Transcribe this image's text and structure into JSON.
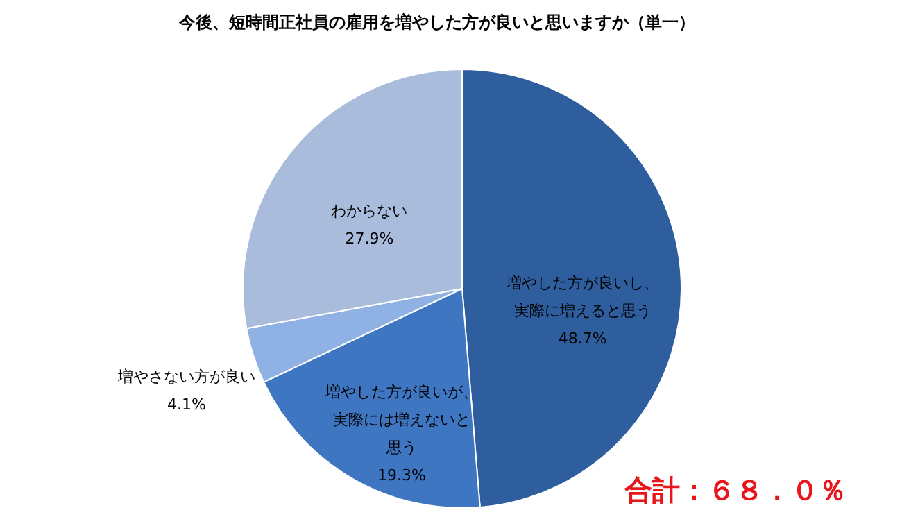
{
  "chart_data": {
    "type": "pie",
    "title": "今後、短時間正社員の雇用を増やした方が良いと思いますか（単一）",
    "categories": [
      "増やした方が良いし、実際に増えると思う",
      "増やした方が良いが、実際には増えないと思う",
      "増やさない方が良い",
      "わからない"
    ],
    "values": [
      48.7,
      19.3,
      4.1,
      27.9
    ],
    "colors": [
      "#2f5e9e",
      "#3f76c2",
      "#8fb1e3",
      "#a9bcdc"
    ],
    "value_labels": [
      "48.7%",
      "19.3%",
      "4.1%",
      "27.9%"
    ],
    "annotations": [
      "合計：６８．０％"
    ]
  }
}
